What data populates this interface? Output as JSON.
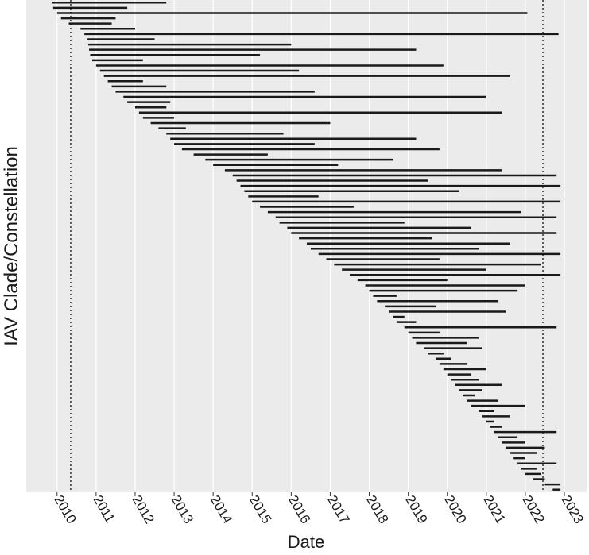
{
  "chart_data": {
    "type": "range",
    "xlabel": "Date",
    "ylabel": "IAV Clade/Constellation",
    "xlim": [
      2009.21,
      2023.57
    ],
    "xticks": [
      2010,
      2011,
      2012,
      2013,
      2014,
      2015,
      2016,
      2017,
      2018,
      2019,
      2020,
      2021,
      2022,
      2023
    ],
    "vlines": [
      2010.35,
      2022.45
    ],
    "color": "#1a1a1a",
    "grid": true,
    "start": [
      2009.86,
      2009.9,
      2010.0,
      2010.1,
      2010.3,
      2010.6,
      2010.7,
      2010.78,
      2010.8,
      2010.82,
      2010.85,
      2010.9,
      2011.0,
      2011.1,
      2011.2,
      2011.3,
      2011.4,
      2011.5,
      2011.7,
      2011.8,
      2012.0,
      2012.1,
      2012.2,
      2012.4,
      2012.6,
      2012.8,
      2012.9,
      2013.0,
      2013.2,
      2013.5,
      2013.8,
      2014.0,
      2014.3,
      2014.5,
      2014.6,
      2014.7,
      2014.8,
      2014.9,
      2015.0,
      2015.2,
      2015.4,
      2015.6,
      2015.7,
      2015.9,
      2016.0,
      2016.2,
      2016.4,
      2016.5,
      2016.7,
      2016.9,
      2017.1,
      2017.3,
      2017.5,
      2017.7,
      2017.9,
      2018.0,
      2018.1,
      2018.2,
      2018.4,
      2018.5,
      2018.6,
      2018.7,
      2018.9,
      2019.0,
      2019.1,
      2019.2,
      2019.4,
      2019.5,
      2019.7,
      2019.8,
      2019.9,
      2020.0,
      2020.1,
      2020.2,
      2020.3,
      2020.4,
      2020.5,
      2020.6,
      2020.8,
      2020.9,
      2021.0,
      2021.1,
      2021.2,
      2021.3,
      2021.4,
      2021.5,
      2021.6,
      2021.7,
      2021.8,
      2021.9,
      2022.0,
      2022.2,
      2022.5,
      2022.7
    ],
    "end": [
      2012.8,
      2011.8,
      2022.05,
      2011.5,
      2011.4,
      2012.0,
      2022.85,
      2012.5,
      2016.0,
      2019.2,
      2015.2,
      2012.2,
      2019.9,
      2016.2,
      2021.6,
      2012.2,
      2012.8,
      2016.6,
      2021.0,
      2012.9,
      2012.8,
      2021.4,
      2013.0,
      2017.0,
      2013.3,
      2015.8,
      2019.2,
      2016.6,
      2019.8,
      2015.4,
      2018.6,
      2017.2,
      2021.4,
      2022.8,
      2019.5,
      2022.9,
      2020.3,
      2016.7,
      2022.9,
      2017.6,
      2021.9,
      2022.8,
      2018.9,
      2020.6,
      2022.8,
      2019.6,
      2021.6,
      2020.8,
      2022.9,
      2019.8,
      2022.4,
      2021.0,
      2022.9,
      2020.0,
      2022.0,
      2021.8,
      2018.7,
      2021.3,
      2019.7,
      2021.5,
      2018.9,
      2019.2,
      2022.8,
      2019.8,
      2020.8,
      2020.5,
      2020.9,
      2019.9,
      2020.1,
      2020.5,
      2021.0,
      2020.6,
      2020.8,
      2021.4,
      2020.9,
      2020.7,
      2021.3,
      2022.0,
      2021.2,
      2021.6,
      2021.2,
      2021.4,
      2022.8,
      2021.8,
      2022.0,
      2022.5,
      2022.3,
      2022.0,
      2022.8,
      2022.3,
      2022.4,
      2022.5,
      2022.9,
      2022.9
    ]
  }
}
